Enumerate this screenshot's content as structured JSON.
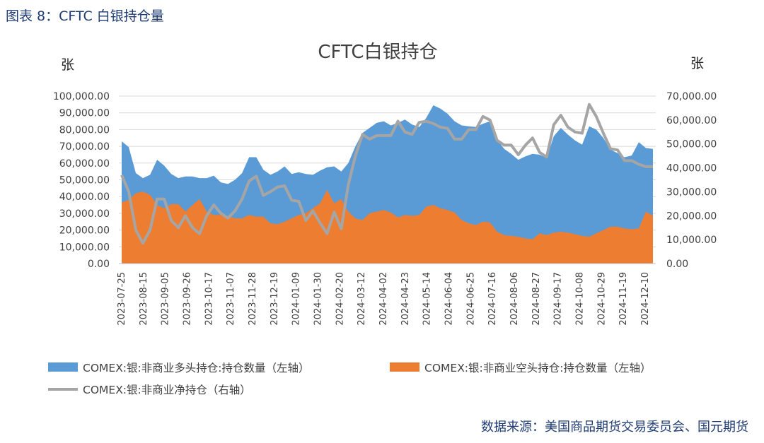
{
  "figure_label": "图表 8：CFTC 白银持仓量",
  "source_note": "数据来源：美国商品期货交易委员会、国元期货",
  "chart_data": {
    "type": "area",
    "title": "CFTC白银持仓",
    "ylabel_left": "张",
    "ylabel_right": "张",
    "ylim_left": [
      0,
      100000
    ],
    "ylim_right": [
      0,
      70000
    ],
    "yticks_left": [
      "0.00",
      "10,000.00",
      "20,000.00",
      "30,000.00",
      "40,000.00",
      "50,000.00",
      "60,000.00",
      "70,000.00",
      "80,000.00",
      "90,000.00",
      "100,000.00"
    ],
    "yticks_right": [
      "0.00",
      "10,000.00",
      "20,000.00",
      "30,000.00",
      "40,000.00",
      "50,000.00",
      "60,000.00",
      "70,000.00"
    ],
    "grid": true,
    "legend_position": "bottom",
    "x_tick_labels": [
      "2023-07-25",
      "2023-08-15",
      "2023-09-05",
      "2023-09-26",
      "2023-10-17",
      "2023-11-07",
      "2023-11-28",
      "2023-12-19",
      "2024-01-09",
      "2024-01-30",
      "2024-02-20",
      "2024-03-12",
      "2024-04-02",
      "2024-04-23",
      "2024-05-14",
      "2024-06-04",
      "2024-06-25",
      "2024-07-16",
      "2024-08-06",
      "2024-08-27",
      "2024-09-17",
      "2024-10-08",
      "2024-10-29",
      "2024-11-19",
      "2024-12-10"
    ],
    "series": [
      {
        "name": "COMEX:银:非商业多头持仓:持仓数量（左轴）",
        "type": "area",
        "axis": "left",
        "color": "#5b9bd5",
        "values": [
          73000,
          69500,
          54000,
          51000,
          53000,
          62000,
          58500,
          53500,
          51000,
          52000,
          52000,
          51000,
          51000,
          52500,
          48500,
          47500,
          50000,
          54000,
          63500,
          63500,
          56000,
          53000,
          55000,
          58000,
          53500,
          54500,
          53500,
          53000,
          55500,
          57500,
          58000,
          55000,
          60000,
          70000,
          78000,
          81000,
          84000,
          85000,
          82500,
          84000,
          86000,
          83000,
          81500,
          87000,
          94500,
          92500,
          89500,
          85000,
          82500,
          82000,
          81500,
          83500,
          85000,
          74000,
          68500,
          65500,
          62000,
          64000,
          65500,
          65000,
          63000,
          76000,
          81000,
          77000,
          73500,
          71000,
          82000,
          80000,
          75000,
          68000,
          66000,
          63500,
          64500,
          72500,
          69000,
          68500
        ]
      },
      {
        "name": "COMEX:银:非商业空头持仓:持仓数量（左轴）",
        "type": "area",
        "axis": "left",
        "color": "#ed7d31",
        "values": [
          36500,
          38000,
          42000,
          43000,
          41000,
          35000,
          33000,
          35500,
          35500,
          31000,
          35000,
          38500,
          31000,
          29000,
          29000,
          28500,
          27000,
          27000,
          29000,
          28000,
          28000,
          24000,
          23500,
          25000,
          27000,
          29000,
          30000,
          33000,
          36000,
          44000,
          36000,
          38500,
          31000,
          27000,
          26000,
          30000,
          31000,
          32000,
          30500,
          27500,
          29000,
          28500,
          29000,
          34000,
          35000,
          33000,
          32000,
          30500,
          26000,
          24000,
          23000,
          25000,
          24500,
          19000,
          17000,
          16500,
          16000,
          15000,
          14500,
          18000,
          17000,
          18500,
          19000,
          18500,
          17500,
          16500,
          16000,
          18000,
          20000,
          22000,
          22000,
          21000,
          20500,
          21000,
          31000,
          28500
        ]
      },
      {
        "name": "COMEX:银:非商业净持仓（右轴）",
        "type": "line",
        "axis": "right",
        "color": "#a5a5a5",
        "values": [
          37000,
          30000,
          14000,
          8500,
          14000,
          27000,
          27000,
          18000,
          15000,
          20000,
          15000,
          12500,
          20000,
          24500,
          21000,
          19000,
          22000,
          27000,
          34500,
          36500,
          28500,
          30000,
          32000,
          32500,
          26500,
          26000,
          18000,
          22000,
          17000,
          12500,
          21500,
          14500,
          33000,
          45000,
          54000,
          52000,
          53500,
          53500,
          53500,
          59500,
          55000,
          54000,
          59000,
          59500,
          58500,
          57000,
          56500,
          52000,
          52000,
          56000,
          56000,
          61500,
          60000,
          51500,
          49500,
          49500,
          45500,
          49500,
          52500,
          46500,
          44500,
          58000,
          62000,
          57000,
          55000,
          54500,
          66500,
          61500,
          54500,
          48000,
          47500,
          43000,
          43000,
          41500,
          40500,
          40500
        ]
      }
    ]
  }
}
